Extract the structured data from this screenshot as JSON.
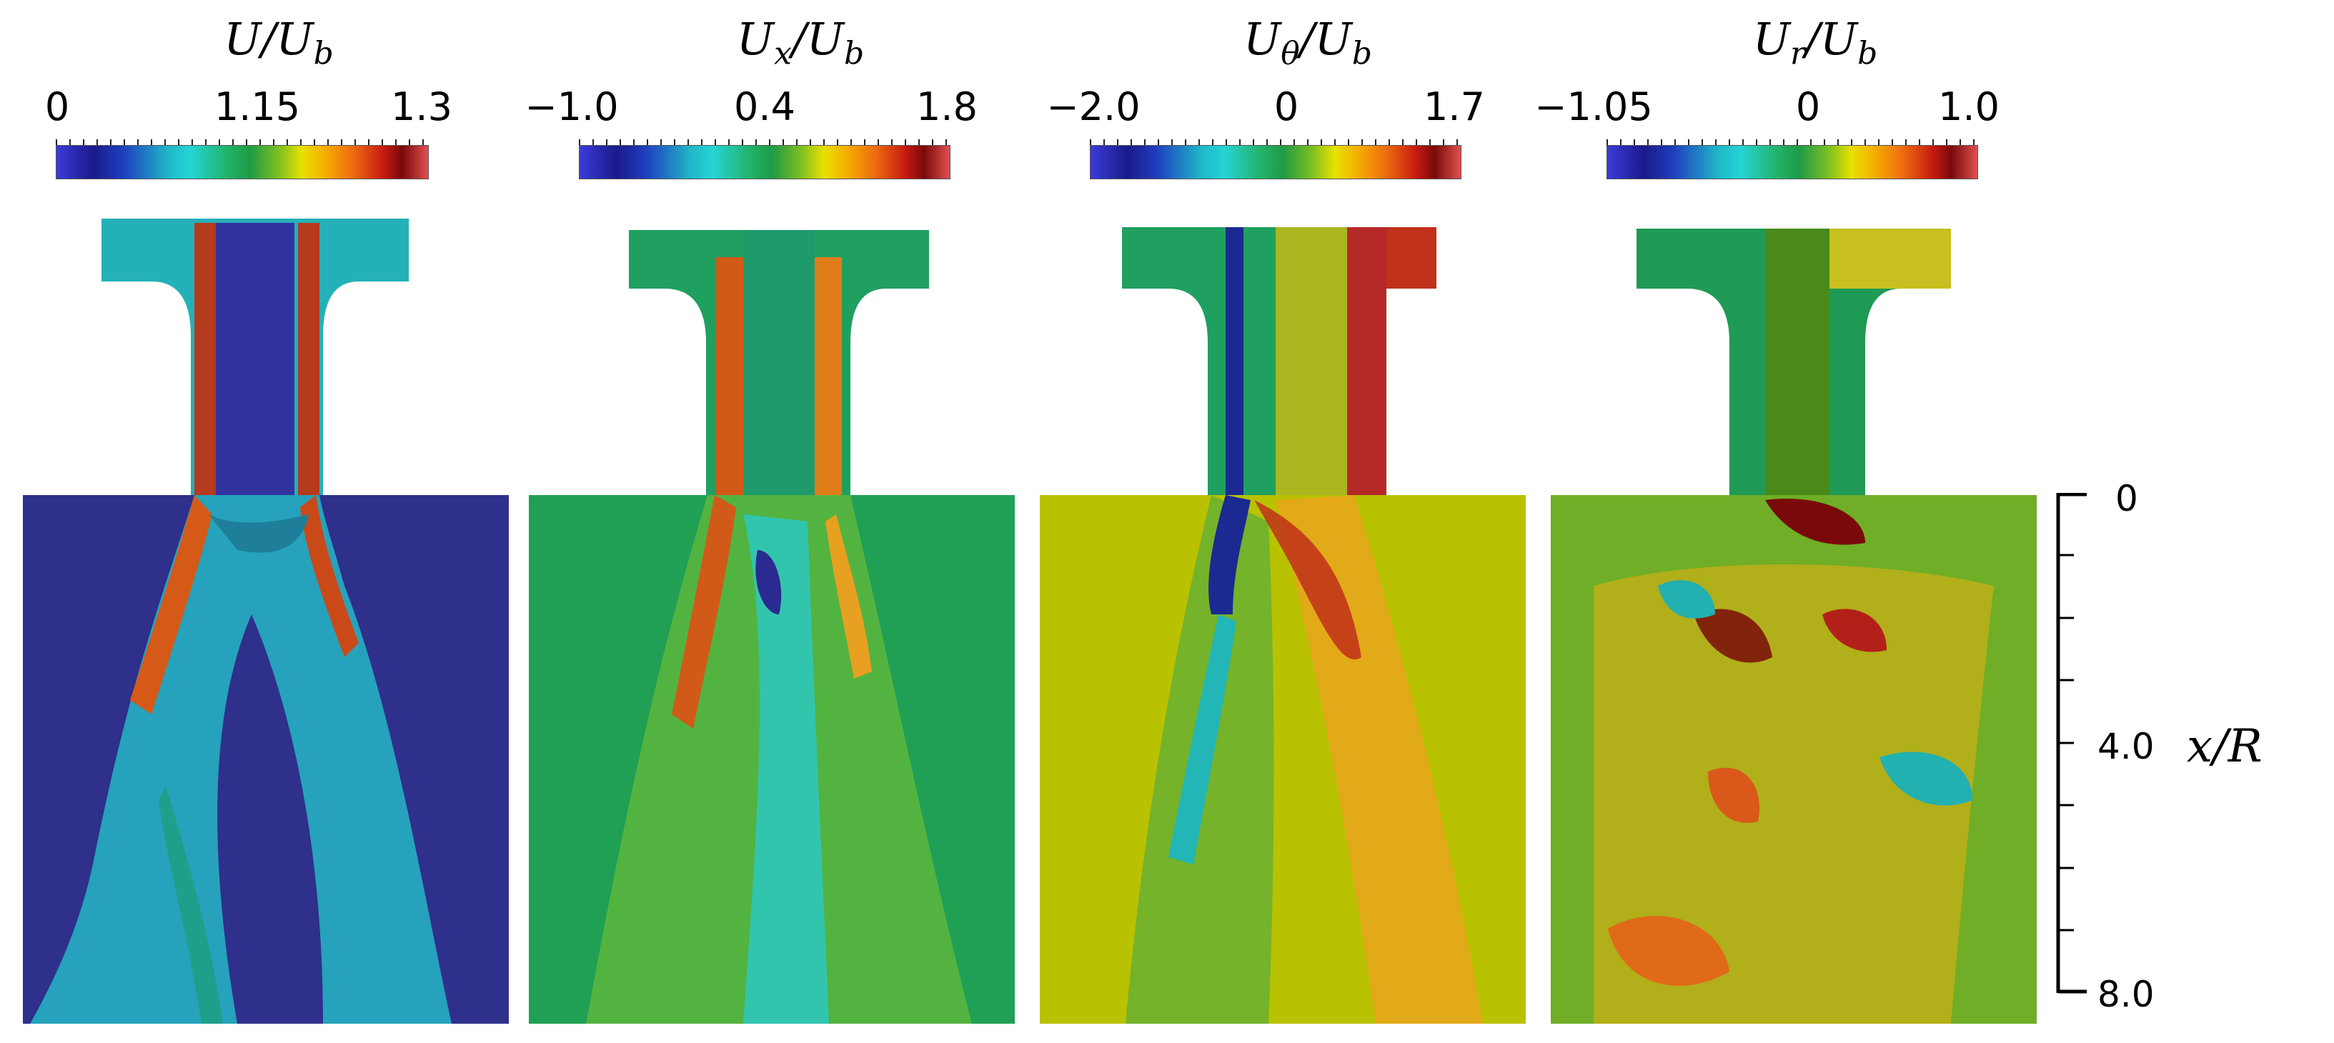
{
  "panels": [
    {
      "title_main": "U/U",
      "title_sub": "b",
      "colorbar_labels": [
        "0",
        "1.15",
        "1.3"
      ],
      "background": "#2f2f8c",
      "nozzle_fill": "#3a3aa0",
      "jet_color": "#b53b1f",
      "mid_color": "#1fb7c8"
    },
    {
      "title_main": "U",
      "title_sub": "x",
      "title_tail": "/U",
      "title_tail_sub": "b",
      "colorbar_labels": [
        "−1.0",
        "0.4",
        "1.8"
      ],
      "background": "#1fa055",
      "nozzle_fill": "#1fa055",
      "jet_color": "#d25a18",
      "mid_color": "#2bc9c9"
    },
    {
      "title_main": "U",
      "title_sub": "θ",
      "title_tail": "/U",
      "title_tail_sub": "b",
      "colorbar_labels": [
        "−2.0",
        "0",
        "1.7"
      ],
      "background": "#b8c200",
      "nozzle_fill": "#9fab10",
      "jet_color": "#c0301a",
      "mid_color": "#22b6b6"
    },
    {
      "title_main": "U",
      "title_sub": "r",
      "title_tail": "/U",
      "title_tail_sub": "b",
      "colorbar_labels": [
        "−1.05",
        "0",
        "1.0"
      ],
      "background": "#6fae26",
      "nozzle_fill": "#4a8a1a",
      "jet_color": "#c2441a",
      "mid_color": "#1f9a55"
    }
  ],
  "axis": {
    "label_main": "x/R",
    "ticks": [
      "0",
      "4.0",
      "8.0"
    ]
  }
}
